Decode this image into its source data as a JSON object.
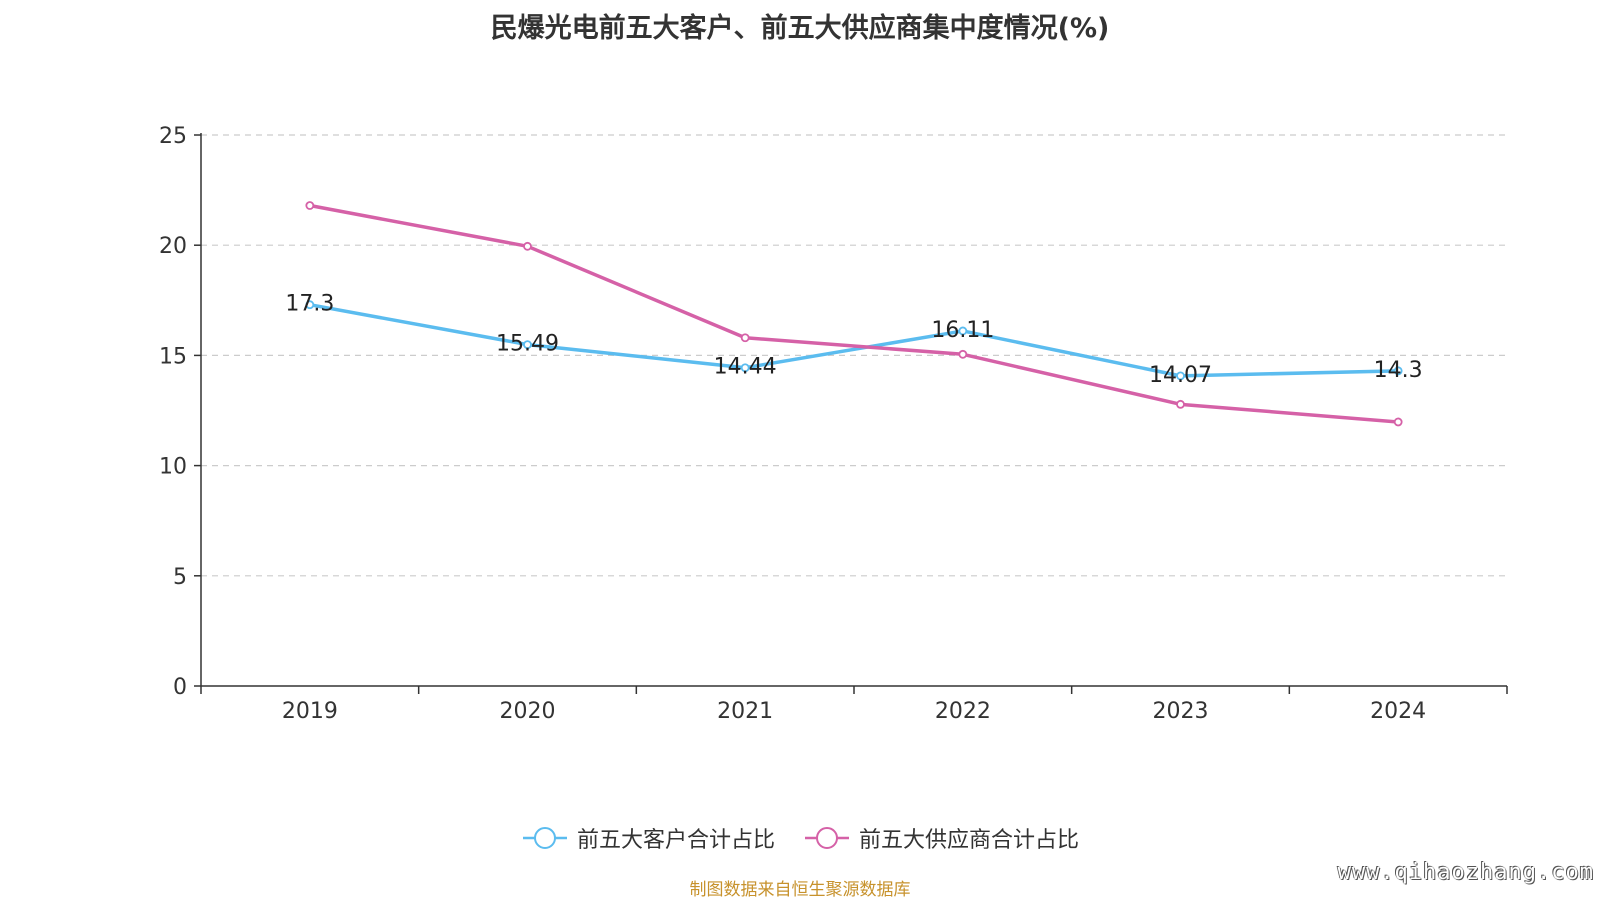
{
  "title": "民爆光电前五大客户、前五大供应商集中度情况(%)",
  "source": "制图数据来自恒生聚源数据库",
  "watermark": "www.qihaozhang.com",
  "chart_data": {
    "type": "line",
    "title": "民爆光电前五大客户、前五大供应商集中度情况(%)",
    "categories": [
      "2019",
      "2020",
      "2021",
      "2022",
      "2023",
      "2024"
    ],
    "ylim": [
      0,
      25
    ],
    "yticks": [
      0,
      5,
      10,
      15,
      20,
      25
    ],
    "grid": true,
    "legend_position": "bottom",
    "series": [
      {
        "name": "前五大客户合计占比",
        "color": "#5bbcef",
        "values": [
          17.3,
          15.49,
          14.44,
          16.11,
          14.07,
          14.3
        ],
        "labels": [
          "17.3",
          "15.49",
          "14.44",
          "16.11",
          "14.07",
          "14.3"
        ],
        "show_labels": true
      },
      {
        "name": "前五大供应商合计占比",
        "color": "#d561a7",
        "values": [
          21.8,
          19.95,
          15.8,
          15.05,
          12.78,
          11.98
        ],
        "show_labels": false
      }
    ]
  }
}
